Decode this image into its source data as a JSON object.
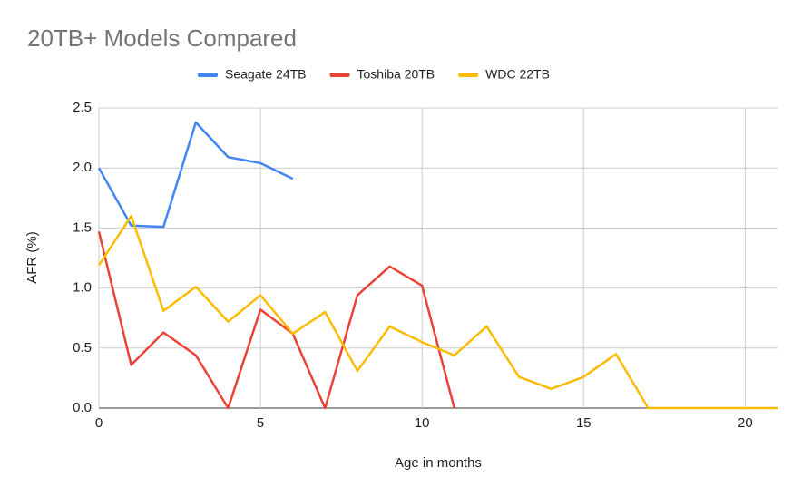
{
  "chart_data": {
    "type": "line",
    "title": "20TB+ Models Compared",
    "x_label": "Age in months",
    "y_label": "AFR (%)",
    "x": [
      0,
      1,
      2,
      3,
      4,
      5,
      6,
      7,
      8,
      9,
      10,
      11,
      12,
      13,
      14,
      15,
      16,
      17,
      18,
      19,
      20,
      21
    ],
    "series": [
      {
        "name": "Seagate 24TB",
        "color": "#4285f4",
        "values": [
          2.0,
          1.52,
          1.51,
          2.38,
          2.09,
          2.04,
          1.91,
          null,
          null,
          null,
          null,
          null,
          null,
          null,
          null,
          null,
          null,
          null,
          null,
          null,
          null,
          null
        ]
      },
      {
        "name": "Toshiba 20TB",
        "color": "#ea4335",
        "values": [
          1.47,
          0.36,
          0.63,
          0.44,
          0,
          0.82,
          0.62,
          0,
          0.94,
          1.18,
          1.02,
          0,
          null,
          null,
          null,
          null,
          null,
          null,
          null,
          null,
          null,
          null
        ]
      },
      {
        "name": "WDC 22TB",
        "color": "#fbbc04",
        "values": [
          1.19,
          1.6,
          0.81,
          1.01,
          0.72,
          0.94,
          0.62,
          0.8,
          0.31,
          0.68,
          0.55,
          0.44,
          0.68,
          0.26,
          0.16,
          0.26,
          0.45,
          0,
          0,
          0,
          0,
          0
        ]
      }
    ],
    "xlim": [
      0,
      21
    ],
    "xticks": [
      0,
      5,
      10,
      15,
      20
    ],
    "ylim": [
      0,
      2.5
    ],
    "yticks": [
      {
        "value": 0,
        "label": "0.0"
      },
      {
        "value": 0.5,
        "label": "0.5"
      },
      {
        "value": 1,
        "label": "1.0"
      },
      {
        "value": 1.5,
        "label": "1.5"
      },
      {
        "value": 2,
        "label": "2.0"
      },
      {
        "value": 2.5,
        "label": "2.5"
      }
    ],
    "grid": true,
    "legend": "top"
  }
}
